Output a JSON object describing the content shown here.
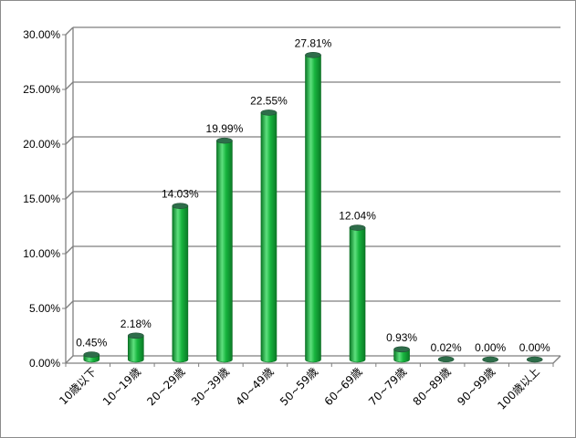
{
  "chart_data": {
    "type": "bar",
    "categories": [
      "10歳以下",
      "10~19歳",
      "20~29歳",
      "30~39歳",
      "40~49歳",
      "50~59歳",
      "60~69歳",
      "70~79歳",
      "80~89歳",
      "90~99歳",
      "100歳以上"
    ],
    "values": [
      0.45,
      2.18,
      14.03,
      19.99,
      22.55,
      27.81,
      12.04,
      0.93,
      0.02,
      0.0,
      0.0
    ],
    "data_labels": [
      "0.45%",
      "2.18%",
      "14.03%",
      "19.99%",
      "22.55%",
      "27.81%",
      "12.04%",
      "0.93%",
      "0.02%",
      "0.00%",
      "0.00%"
    ],
    "ylim": [
      0,
      30
    ],
    "yticks": [
      0,
      5,
      10,
      15,
      20,
      25,
      30
    ],
    "ytick_labels": [
      "0.00%",
      "5.00%",
      "10.00%",
      "15.00%",
      "20.00%",
      "25.00%",
      "30.00%"
    ],
    "grid": true,
    "legend": "none",
    "bar_style": "3d-cylinder",
    "colors": {
      "bar_fill": "#17b43e",
      "bar_dark": "#0a7a26",
      "bar_light": "#5ee07e",
      "bar_top": "#2e6d4a",
      "grid": "#7f7f7f",
      "axis": "#7f7f7f"
    }
  }
}
